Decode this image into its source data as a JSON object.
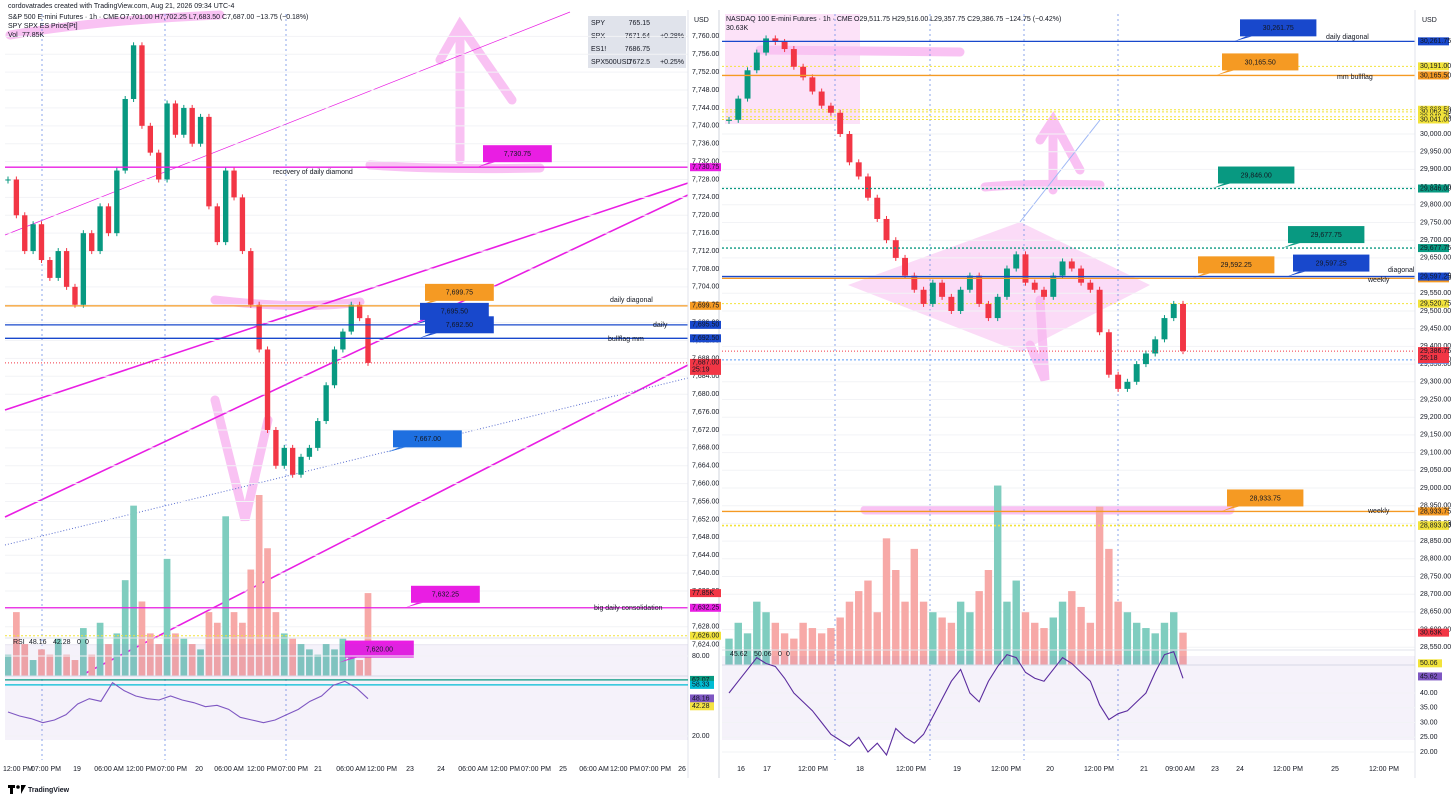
{
  "header": {
    "credit": "cordovatrades created with TradingView.com, Aug 21, 2026 09:34 UTC-4",
    "brand": "TradingView"
  },
  "watchlist": [
    [
      "SPY",
      "765.15",
      ""
    ],
    [
      "SPX",
      "7671.64",
      "+0.28%"
    ],
    [
      "ES1!",
      "7686.75",
      ""
    ],
    [
      "SPX500USD",
      "7672.5",
      "+0.25%"
    ]
  ],
  "chart_data": [
    {
      "type": "candlestick",
      "title": "S&P 500 E-mini Futures · 1h · CME",
      "ohlc": "O7,701.00 H7,702.25 L7,683.50 C7,687.00 −13.75 (−0.18%)",
      "subtitle": "SPY SPX ES Price[Pt]",
      "volume_title": "Vol",
      "volume_label": "77.85K",
      "currency": "USD",
      "ylim": [
        7617,
        7765
      ],
      "yticks": [
        {
          "value": 7760,
          "label": "7,760.00"
        },
        {
          "value": 7756,
          "label": "7,756.00"
        },
        {
          "value": 7752,
          "label": "7,752.00"
        },
        {
          "value": 7748,
          "label": "7,748.00"
        },
        {
          "value": 7744,
          "label": "7,744.00"
        },
        {
          "value": 7740,
          "label": "7,740.00"
        },
        {
          "value": 7736,
          "label": "7,736.00"
        },
        {
          "value": 7732,
          "label": "7,732.00"
        },
        {
          "value": 7728,
          "label": "7,728.00"
        },
        {
          "value": 7724,
          "label": "7,724.00"
        },
        {
          "value": 7720,
          "label": "7,720.00"
        },
        {
          "value": 7716,
          "label": "7,716.00"
        },
        {
          "value": 7712,
          "label": "7,712.00"
        },
        {
          "value": 7708,
          "label": "7,708.00"
        },
        {
          "value": 7704,
          "label": "7,704.00"
        },
        {
          "value": 7700,
          "label": "7,700.00"
        },
        {
          "value": 7696,
          "label": "7,696.00"
        },
        {
          "value": 7692,
          "label": "7,692.00"
        },
        {
          "value": 7688,
          "label": "7,688.00"
        },
        {
          "value": 7684,
          "label": "7,684.00"
        },
        {
          "value": 7680,
          "label": "7,680.00"
        },
        {
          "value": 7676,
          "label": "7,676.00"
        },
        {
          "value": 7672,
          "label": "7,672.00"
        },
        {
          "value": 7668,
          "label": "7,668.00"
        },
        {
          "value": 7664,
          "label": "7,664.00"
        },
        {
          "value": 7660,
          "label": "7,660.00"
        },
        {
          "value": 7656,
          "label": "7,656.00"
        },
        {
          "value": 7652,
          "label": "7,652.00"
        },
        {
          "value": 7648,
          "label": "7,648.00"
        },
        {
          "value": 7644,
          "label": "7,644.00"
        },
        {
          "value": 7640,
          "label": "7,640.00"
        },
        {
          "value": 7636,
          "label": "7,636.00"
        },
        {
          "value": 7632,
          "label": "7,632.00"
        },
        {
          "value": 7628,
          "label": "7,628.00"
        },
        {
          "value": 7624,
          "label": "7,624.00"
        }
      ],
      "x_labels": [
        "12:00 PM",
        "07:00 PM",
        "19",
        "06:00 AM",
        "12:00 PM",
        "07:00 PM",
        "20",
        "06:00 AM",
        "12:00 PM",
        "07:00 PM",
        "21",
        "06:00 AM",
        "12:00 PM",
        "23",
        "24",
        "06:00 AM",
        "12:00 PM",
        "07:00 PM",
        "25",
        "06:00 AM",
        "12:00 PM",
        "07:00 PM",
        "26"
      ],
      "values": [
        7728,
        7720,
        7712,
        7718,
        7710,
        7706,
        7712,
        7704,
        7700,
        7716,
        7712,
        7722,
        7716,
        7730,
        7746,
        7758,
        7740,
        7734,
        7728,
        7745,
        7738,
        7744,
        7736,
        7742,
        7722,
        7714,
        7730,
        7724,
        7712,
        7700,
        7690,
        7672,
        7664,
        7668,
        7662,
        7666,
        7668,
        7674,
        7682,
        7690,
        7694,
        7700,
        7697,
        7687
      ],
      "volume": [
        20000,
        60000,
        30000,
        15000,
        25000,
        20000,
        35000,
        20000,
        15000,
        45000,
        20000,
        50000,
        30000,
        40000,
        90000,
        160000,
        70000,
        40000,
        30000,
        110000,
        40000,
        35000,
        30000,
        25000,
        60000,
        50000,
        150000,
        60000,
        50000,
        100000,
        170000,
        120000,
        60000,
        40000,
        35000,
        30000,
        25000,
        20000,
        30000,
        25000,
        35000,
        20000,
        15000,
        77850
      ],
      "volume_lim": [
        0,
        170000
      ],
      "last_price": {
        "value": 7687,
        "label": "7,687.00",
        "countdown": "25:19"
      },
      "levels": [
        {
          "value": 7730.75,
          "label": "7,730.75",
          "color": "#e91ee3",
          "style": "solid"
        },
        {
          "value": 7699.75,
          "label": "7,699.75",
          "color": "#f59a23",
          "style": "solid"
        },
        {
          "value": 7695.5,
          "label": "7,695.50",
          "color": "#1848cc",
          "style": "solid"
        },
        {
          "value": 7692.5,
          "label": "7,692.50",
          "color": "#1848cc",
          "style": "solid"
        },
        {
          "value": 7667,
          "label": "7,667.00",
          "color": "#1e6fe0",
          "style": "none"
        },
        {
          "value": 7632.25,
          "label": "7,632.25",
          "color": "#e91ee3",
          "style": "solid"
        },
        {
          "value": 7620,
          "label": "7,620.00",
          "color": "#e91ee3",
          "style": "none"
        }
      ],
      "minor_levels": [
        {
          "value": 7626,
          "label": "7,626.00",
          "color": "#f2e33a"
        }
      ],
      "notes": [
        {
          "text": "daily diagonal",
          "color": "#1848cc"
        },
        {
          "text": "daily",
          "color": "#1848cc"
        },
        {
          "text": "bullflag mm",
          "color": "#1848cc"
        },
        {
          "text": "big daily consolidation",
          "color": "#e91ee3"
        },
        {
          "text": "recovery of daily diamond",
          "color": "#2962ff"
        }
      ],
      "rsi": {
        "label": "RSI",
        "readings": [
          "48.16",
          "42.28",
          "0",
          "0"
        ],
        "ylim": [
          2,
          92
        ],
        "yticks": [
          {
            "value": 80,
            "label": "80.00"
          },
          {
            "value": 20,
            "label": "20.00"
          }
        ],
        "color": "#7e57c2",
        "values": [
          38,
          35,
          33,
          30,
          32,
          36,
          44,
          48,
          46,
          60,
          54,
          50,
          48,
          47,
          50,
          47,
          45,
          42,
          43,
          40,
          34,
          32,
          30,
          32,
          36,
          40,
          46,
          50,
          58,
          61,
          56,
          48
        ],
        "tags": [
          {
            "value": 62.07,
            "label": "62.07",
            "color": "#089981",
            "line": true
          },
          {
            "value": 58.33,
            "label": "58.33",
            "color": "#00bcd4",
            "line": true
          },
          {
            "value": 48.16,
            "label": "48.16",
            "color": "#7e57c2",
            "line": false
          },
          {
            "value": 42.28,
            "label": "42.28",
            "color": "#f5e342",
            "line": false
          }
        ]
      }
    },
    {
      "type": "candlestick",
      "title": "NASDAQ 100 E-mini Futures · 1h · CME",
      "ohlc": "O29,511.75 H29,516.00 L29,357.75 C29,386.75 −124.75 (−0.42%)",
      "volume_label": "30.63K",
      "currency": "USD",
      "ylim": [
        28500,
        30339
      ],
      "yticks": [
        {
          "value": 30000,
          "label": "30,000.00"
        },
        {
          "value": 29950,
          "label": "29,950.00"
        },
        {
          "value": 29900,
          "label": "29,900.00"
        },
        {
          "value": 29850,
          "label": "29,850.00"
        },
        {
          "value": 29800,
          "label": "29,800.00"
        },
        {
          "value": 29750,
          "label": "29,750.00"
        },
        {
          "value": 29700,
          "label": "29,700.00"
        },
        {
          "value": 29650,
          "label": "29,650.00"
        },
        {
          "value": 29600,
          "label": "29,600.00"
        },
        {
          "value": 29550,
          "label": "29,550.00"
        },
        {
          "value": 29500,
          "label": "29,500.00"
        },
        {
          "value": 29450,
          "label": "29,450.00"
        },
        {
          "value": 29400,
          "label": "29,400.00"
        },
        {
          "value": 29350,
          "label": "29,350.00"
        },
        {
          "value": 29300,
          "label": "29,300.00"
        },
        {
          "value": 29250,
          "label": "29,250.00"
        },
        {
          "value": 29200,
          "label": "29,200.00"
        },
        {
          "value": 29150,
          "label": "29,150.00"
        },
        {
          "value": 29100,
          "label": "29,100.00"
        },
        {
          "value": 29050,
          "label": "29,050.00"
        },
        {
          "value": 29000,
          "label": "29,000.00"
        },
        {
          "value": 28950,
          "label": "28,950.00"
        },
        {
          "value": 28900,
          "label": "28,900.00"
        },
        {
          "value": 28850,
          "label": "28,850.00"
        },
        {
          "value": 28800,
          "label": "28,800.00"
        },
        {
          "value": 28750,
          "label": "28,750.00"
        },
        {
          "value": 28700,
          "label": "28,700.00"
        },
        {
          "value": 28650,
          "label": "28,650.00"
        },
        {
          "value": 28600,
          "label": "28,600.00"
        },
        {
          "value": 28550,
          "label": "28,550.00"
        }
      ],
      "x_labels": [
        "16",
        "17",
        "12:00 PM",
        "18",
        "12:00 PM",
        "19",
        "12:00 PM",
        "20",
        "12:00 PM",
        "21",
        "09:00 AM",
        "23",
        "24",
        "12:00 PM",
        "25",
        "12:00 PM"
      ],
      "values": [
        30040,
        30100,
        30180,
        30230,
        30270,
        30260,
        30240,
        30190,
        30160,
        30120,
        30080,
        30060,
        30000,
        29920,
        29880,
        29820,
        29760,
        29700,
        29650,
        29600,
        29560,
        29520,
        29580,
        29540,
        29500,
        29560,
        29600,
        29520,
        29480,
        29540,
        29620,
        29660,
        29580,
        29560,
        29540,
        29600,
        29640,
        29620,
        29580,
        29560,
        29440,
        29320,
        29280,
        29300,
        29350,
        29380,
        29420,
        29480,
        29520,
        29386.75
      ],
      "volume": [
        25000,
        40000,
        30000,
        60000,
        50000,
        40000,
        30000,
        25000,
        40000,
        35000,
        30000,
        35000,
        45000,
        60000,
        70000,
        80000,
        50000,
        120000,
        90000,
        60000,
        110000,
        60000,
        50000,
        45000,
        40000,
        60000,
        50000,
        70000,
        90000,
        170000,
        60000,
        80000,
        50000,
        40000,
        35000,
        45000,
        60000,
        70000,
        55000,
        40000,
        150000,
        110000,
        60000,
        50000,
        40000,
        35000,
        30000,
        40000,
        50000,
        30630
      ],
      "volume_lim": [
        0,
        180000
      ],
      "last_price": {
        "value": 29386.75,
        "label": "29,386.75",
        "countdown": "25:18"
      },
      "levels": [
        {
          "value": 30261.75,
          "label": "30,261.75",
          "color": "#1848cc",
          "style": "solid"
        },
        {
          "value": 30165.5,
          "label": "30,165.50",
          "color": "#f59a23",
          "style": "solid"
        },
        {
          "value": 29846,
          "label": "29,846.00",
          "color": "#089981",
          "style": "dotted"
        },
        {
          "value": 29677.75,
          "label": "29,677.75",
          "color": "#089981",
          "style": "dotted"
        },
        {
          "value": 29592.25,
          "label": "29,592.25",
          "color": "#f59a23",
          "style": "solid"
        },
        {
          "value": 29597.25,
          "label": "29,597.25",
          "color": "#1848cc",
          "style": "solid"
        },
        {
          "value": 28933.75,
          "label": "28,933.75",
          "color": "#f59a23",
          "style": "solid"
        }
      ],
      "minor_levels": [
        {
          "value": 30191,
          "label": "30,191.00",
          "color": "#f2e33a"
        },
        {
          "value": 30068.5,
          "label": "30,068.50",
          "color": "#f2e33a"
        },
        {
          "value": 30062.5,
          "label": "30,062.50",
          "color": "#f2e33a"
        },
        {
          "value": 30048.75,
          "label": "30,048.75",
          "color": "#f2e33a"
        },
        {
          "value": 30041,
          "label": "30,041.00",
          "color": "#f2e33a"
        },
        {
          "value": 29520.75,
          "label": "29,520.75",
          "color": "#f2e33a"
        },
        {
          "value": 29362,
          "label": "29,362.00",
          "color": "#5b9cf6"
        },
        {
          "value": 28894.75,
          "label": "28,894.75",
          "color": "#f2e33a"
        },
        {
          "value": 28893,
          "label": "28,893.00",
          "color": "#f2e33a"
        }
      ],
      "notes": [
        {
          "text": "daily diagonal",
          "color": "#1848cc"
        },
        {
          "text": "mm bullflag",
          "color": "#f59a23"
        },
        {
          "text": "diagonal",
          "color": "#1848cc"
        },
        {
          "text": "weekly",
          "color": "#f59a23"
        },
        {
          "text": "weekly",
          "color": "#f59a23"
        }
      ],
      "rsi": {
        "readings": [
          "45.62",
          "50.06",
          "0",
          "0"
        ],
        "ylim": [
          17.3,
          53.9
        ],
        "yticks": [
          {
            "value": 40,
            "label": "40.00"
          },
          {
            "value": 35,
            "label": "35.00"
          },
          {
            "value": 30,
            "label": "30.00"
          },
          {
            "value": 25,
            "label": "25.00"
          },
          {
            "value": 20,
            "label": "20.00"
          }
        ],
        "color": "#5b2c9e",
        "values": [
          40,
          44,
          48,
          52,
          50,
          49,
          45,
          40,
          37,
          34,
          30,
          26,
          24,
          22,
          25,
          20,
          23,
          19,
          28,
          25,
          23,
          26,
          32,
          38,
          44,
          48,
          40,
          37,
          44,
          49,
          53,
          52,
          47,
          45,
          44,
          48,
          52,
          50,
          47,
          44,
          36,
          31,
          33,
          34,
          37,
          40,
          47,
          53,
          54,
          45
        ],
        "tags": [
          {
            "value": 50.06,
            "label": "50.06",
            "color": "#f2e33a",
            "line": false
          },
          {
            "value": 45.62,
            "label": "45.62",
            "color": "#7e57c2",
            "line": false
          }
        ]
      }
    }
  ]
}
